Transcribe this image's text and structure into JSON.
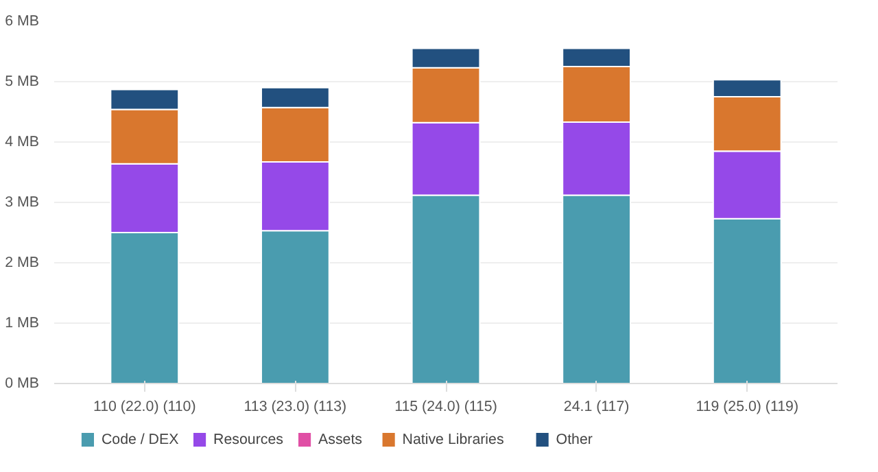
{
  "chart_data": {
    "type": "bar",
    "stacked": true,
    "categories": [
      "110 (22.0) (110)",
      "113 (23.0) (113)",
      "115 (24.0) (115)",
      "24.1 (117)",
      "119 (25.0) (119)"
    ],
    "series": [
      {
        "name": "Code / DEX",
        "color": "#4a9caf",
        "values": [
          2.5,
          2.53,
          3.12,
          3.12,
          2.73
        ]
      },
      {
        "name": "Resources",
        "color": "#9549e8",
        "values": [
          1.14,
          1.14,
          1.2,
          1.21,
          1.12
        ]
      },
      {
        "name": "Assets",
        "color": "#e04fa5",
        "values": [
          null,
          null,
          null,
          null,
          null
        ]
      },
      {
        "name": "Native Libraries",
        "color": "#d9772e",
        "values": [
          0.9,
          0.9,
          0.91,
          0.92,
          0.9
        ]
      },
      {
        "name": "Other",
        "color": "#22507f",
        "values": [
          0.33,
          0.33,
          0.32,
          0.3,
          0.28
        ]
      }
    ],
    "ylim": [
      0,
      6
    ],
    "yticks": [
      {
        "value": 0,
        "label": "0 MB"
      },
      {
        "value": 1,
        "label": "1 MB"
      },
      {
        "value": 2,
        "label": "2 MB"
      },
      {
        "value": 3,
        "label": "3 MB"
      },
      {
        "value": 4,
        "label": "4 MB"
      },
      {
        "value": 5,
        "label": "5 MB"
      },
      {
        "value": 6,
        "label": "6 MB"
      }
    ],
    "grid": "y",
    "legend": "bottom left"
  }
}
